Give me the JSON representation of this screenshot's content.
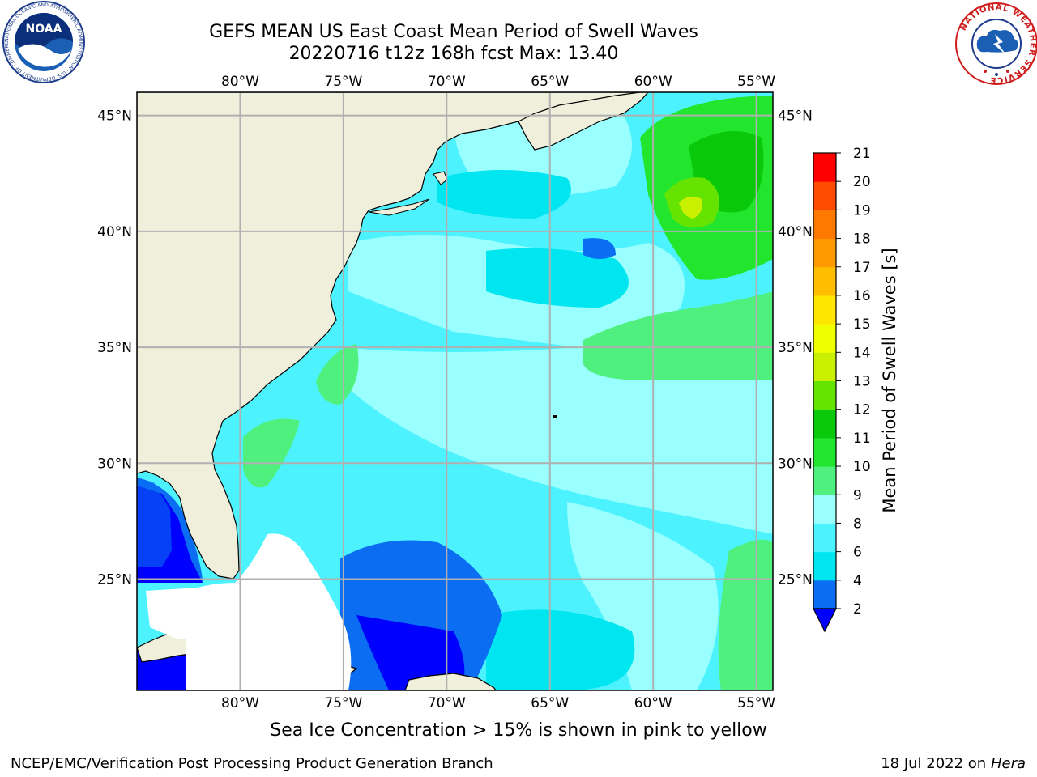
{
  "header": {
    "title_line1": "GEFS MEAN US East Coast Mean Period of Swell Waves",
    "title_line2": "20220716 t12z 168h fcst   Max: 13.40"
  },
  "logos": {
    "noaa_text": "NOAA",
    "noaa_ring_text": "NATIONAL OCEANIC AND ATMOSPHERIC ADMINISTRATION · U.S. DEPARTMENT OF COMMERCE",
    "nws_ring_text": "NATIONAL WEATHER SERVICE"
  },
  "map": {
    "lon_ticks": [
      "80°W",
      "75°W",
      "70°W",
      "65°W",
      "60°W",
      "55°W"
    ],
    "lat_ticks": [
      "45°N",
      "40°N",
      "35°N",
      "30°N",
      "25°N"
    ],
    "lon_values": [
      -80,
      -75,
      -70,
      -65,
      -60,
      -55
    ],
    "lat_values": [
      45,
      40,
      35,
      30,
      25
    ],
    "lon_range": [
      -85,
      -54.2
    ],
    "lat_range": [
      20.2,
      46
    ],
    "land_color": "#efefdc",
    "grid": true
  },
  "colorbar": {
    "label": "Mean Period of Swell Waves [s]",
    "ticks": [
      "2",
      "4",
      "6",
      "8",
      "9",
      "10",
      "11",
      "12",
      "13",
      "14",
      "15",
      "16",
      "17",
      "18",
      "19",
      "20",
      "21"
    ],
    "colors": [
      "#0a6df2",
      "#00e6f0",
      "#4df2ff",
      "#99ffff",
      "#50f07e",
      "#21e62d",
      "#0ac80a",
      "#64e400",
      "#c8f000",
      "#f0ff00",
      "#ffe600",
      "#ffbe00",
      "#ff9b00",
      "#ff7800",
      "#ff4b00",
      "#ff0000"
    ],
    "under_color": "#0000ff"
  },
  "footer": {
    "note": "Sea Ice Concentration > 15% is shown in pink to yellow",
    "left": "NCEP/EMC/Verification Post Processing Product Generation Branch",
    "right_prefix": "18 Jul 2022 on ",
    "right_host": "Hera"
  }
}
